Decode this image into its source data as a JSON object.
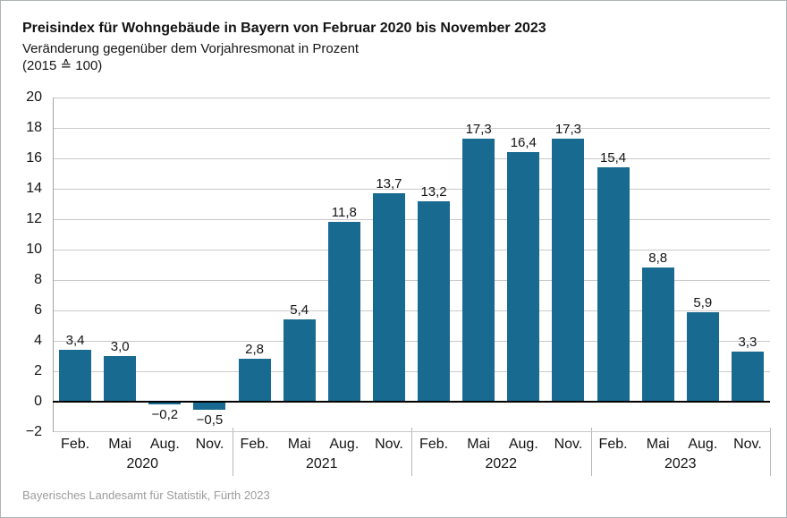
{
  "header": {
    "title": "Preisindex für Wohngebäude in Bayern von Februar 2020 bis November 2023",
    "subtitle": "Veränderung gegenüber dem Vorjahresmonat in Prozent",
    "base_note": "(2015 ≙ 100)"
  },
  "footer": {
    "source": "Bayerisches Landesamt für Statistik, Fürth 2023"
  },
  "colors": {
    "bar": "#186a90",
    "grid_line": "#c9c9c9",
    "zero_line": "#000000",
    "axis_line": "#a3a3a3",
    "separator_line": "#b8b8b8",
    "text": "#141414",
    "source_text": "#9c9c9c",
    "background": "#ffffff",
    "frame_border": "#adb2b6"
  },
  "chart_data": {
    "type": "bar",
    "title": "Preisindex für Wohngebäude in Bayern von Februar 2020 bis November 2023",
    "subtitle": "Veränderung gegenüber dem Vorjahresmonat in Prozent",
    "base_note": "(2015 ≙ 100)",
    "xlabel": "",
    "ylabel": "Veränderung gegenüber dem Vorjahresmonat in Prozent",
    "ylim": [
      -2,
      20
    ],
    "ytick_step": 2,
    "ytick_labels": [
      "20",
      "18",
      "16",
      "14",
      "12",
      "10",
      "8",
      "6",
      "4",
      "2",
      "0",
      "−2"
    ],
    "grid": true,
    "legend": false,
    "groups": [
      {
        "year": "2020",
        "months": [
          "Feb.",
          "Mai",
          "Aug.",
          "Nov."
        ],
        "values": [
          3.4,
          3.0,
          -0.2,
          -0.5
        ],
        "labels": [
          "3,4",
          "3,0",
          "−0,2",
          "−0,5"
        ]
      },
      {
        "year": "2021",
        "months": [
          "Feb.",
          "Mai",
          "Aug.",
          "Nov."
        ],
        "values": [
          2.8,
          5.4,
          11.8,
          13.7
        ],
        "labels": [
          "2,8",
          "5,4",
          "11,8",
          "13,7"
        ]
      },
      {
        "year": "2022",
        "months": [
          "Feb.",
          "Mai",
          "Aug.",
          "Nov."
        ],
        "values": [
          13.2,
          17.3,
          16.4,
          17.3
        ],
        "labels": [
          "13,2",
          "17,3",
          "16,4",
          "17,3"
        ]
      },
      {
        "year": "2023",
        "months": [
          "Feb.",
          "Mai",
          "Aug.",
          "Nov."
        ],
        "values": [
          15.4,
          8.8,
          5.9,
          3.3
        ],
        "labels": [
          "15,4",
          "8,8",
          "5,9",
          "3,3"
        ]
      }
    ],
    "source": "Bayerisches Landesamt für Statistik, Fürth 2023"
  }
}
